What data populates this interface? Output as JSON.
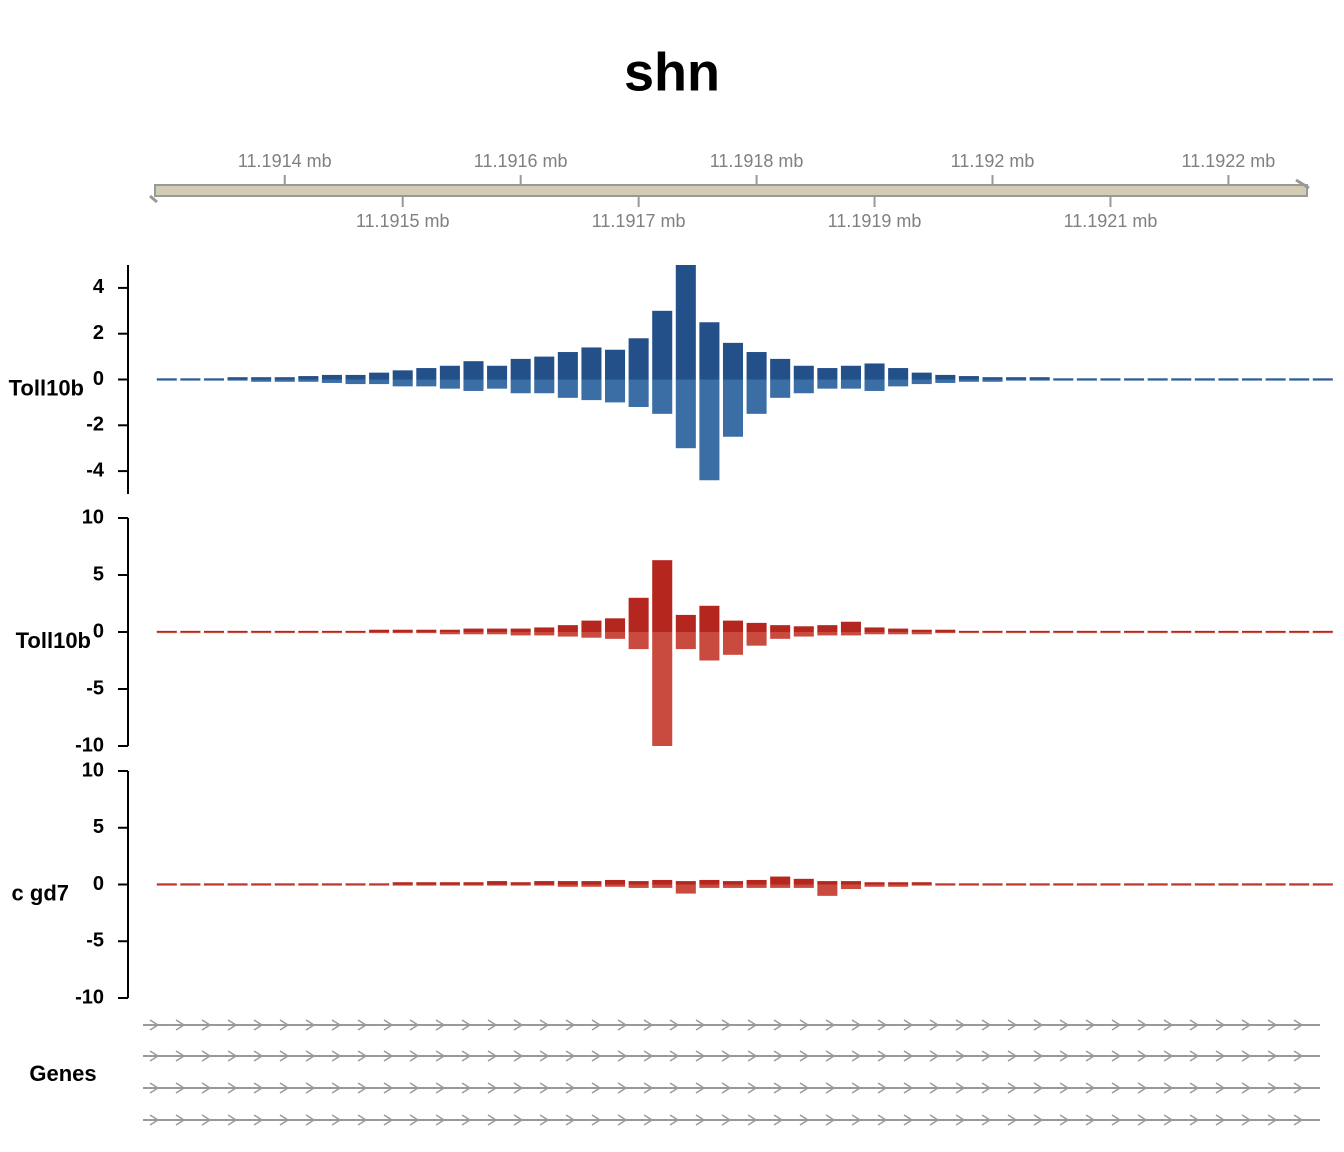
{
  "title": "shn",
  "xlim": [
    11.19129,
    11.19227
  ],
  "xticks": [
    {
      "value": 11.1914,
      "label": "11.1914 mb"
    },
    {
      "value": 11.1915,
      "label": "11.1915 mb"
    },
    {
      "value": 11.1916,
      "label": "11.1916 mb"
    },
    {
      "value": 11.1917,
      "label": "11.1917 mb"
    },
    {
      "value": 11.1918,
      "label": "11.1918 mb"
    },
    {
      "value": 11.1919,
      "label": "11.1919 mb"
    },
    {
      "value": 11.192,
      "label": "11.192 mb"
    },
    {
      "value": 11.1921,
      "label": "11.1921 mb"
    },
    {
      "value": 11.1922,
      "label": "11.1922 mb"
    }
  ],
  "genes_label": "Genes",
  "chart_data": [
    {
      "type": "bar",
      "ylabel": "Toll10b",
      "xlim": [
        11.19129,
        11.19227
      ],
      "ylim": [
        -5,
        5
      ],
      "yticks": [
        -4,
        -2,
        0,
        2,
        4
      ],
      "x": [
        11.1913,
        11.19132,
        11.19134,
        11.19136,
        11.19138,
        11.1914,
        11.19142,
        11.19144,
        11.19146,
        11.19148,
        11.1915,
        11.19152,
        11.19154,
        11.19156,
        11.19158,
        11.1916,
        11.19162,
        11.19164,
        11.19166,
        11.19168,
        11.1917,
        11.19172,
        11.19174,
        11.19176,
        11.19178,
        11.1918,
        11.19182,
        11.19184,
        11.19186,
        11.19188,
        11.1919,
        11.19192,
        11.19194,
        11.19196,
        11.19198,
        11.192,
        11.19202,
        11.19204,
        11.19206,
        11.19208,
        11.1921,
        11.19212,
        11.19214,
        11.19216,
        11.19218,
        11.1922,
        11.19222,
        11.19224,
        11.19226,
        11.19228
      ],
      "series": [
        {
          "color": "#24508a",
          "values": [
            0.05,
            0.05,
            0.05,
            0.1,
            0.1,
            0.1,
            0.15,
            0.2,
            0.2,
            0.3,
            0.4,
            0.5,
            0.6,
            0.8,
            0.6,
            0.9,
            1.0,
            1.2,
            1.4,
            1.3,
            1.8,
            3.0,
            5.0,
            2.5,
            1.6,
            1.2,
            0.9,
            0.6,
            0.5,
            0.6,
            0.7,
            0.5,
            0.3,
            0.2,
            0.15,
            0.1,
            0.1,
            0.1,
            0.05,
            0.05,
            0.05,
            0.05,
            0.05,
            0.05,
            0.05,
            0.05,
            0.05,
            0.05,
            0.05,
            0.05
          ]
        },
        {
          "color": "#3a6ea5",
          "values": [
            -0.05,
            -0.05,
            -0.05,
            -0.05,
            -0.1,
            -0.1,
            -0.1,
            -0.15,
            -0.2,
            -0.2,
            -0.3,
            -0.3,
            -0.4,
            -0.5,
            -0.4,
            -0.6,
            -0.6,
            -0.8,
            -0.9,
            -1.0,
            -1.2,
            -1.5,
            -3.0,
            -4.4,
            -2.5,
            -1.5,
            -0.8,
            -0.6,
            -0.4,
            -0.4,
            -0.5,
            -0.3,
            -0.2,
            -0.15,
            -0.1,
            -0.1,
            -0.05,
            -0.05,
            -0.05,
            -0.05,
            -0.05,
            -0.05,
            -0.05,
            -0.05,
            -0.05,
            -0.05,
            -0.05,
            -0.05,
            -0.05,
            -0.05
          ]
        }
      ]
    },
    {
      "type": "bar",
      "ylabel": "Toll10b",
      "xlim": [
        11.19129,
        11.19227
      ],
      "ylim": [
        -10,
        10
      ],
      "yticks": [
        -10,
        -5,
        0,
        5,
        10
      ],
      "x": [
        11.1913,
        11.19132,
        11.19134,
        11.19136,
        11.19138,
        11.1914,
        11.19142,
        11.19144,
        11.19146,
        11.19148,
        11.1915,
        11.19152,
        11.19154,
        11.19156,
        11.19158,
        11.1916,
        11.19162,
        11.19164,
        11.19166,
        11.19168,
        11.1917,
        11.19172,
        11.19174,
        11.19176,
        11.19178,
        11.1918,
        11.19182,
        11.19184,
        11.19186,
        11.19188,
        11.1919,
        11.19192,
        11.19194,
        11.19196,
        11.19198,
        11.192,
        11.19202,
        11.19204,
        11.19206,
        11.19208,
        11.1921,
        11.19212,
        11.19214,
        11.19216,
        11.19218,
        11.1922,
        11.19222,
        11.19224,
        11.19226,
        11.19228
      ],
      "series": [
        {
          "color": "#b5261e",
          "values": [
            0.1,
            0.1,
            0.1,
            0.1,
            0.1,
            0.1,
            0.1,
            0.1,
            0.1,
            0.2,
            0.2,
            0.2,
            0.2,
            0.3,
            0.3,
            0.3,
            0.4,
            0.6,
            1.0,
            1.2,
            3.0,
            6.3,
            1.5,
            2.3,
            1.0,
            0.8,
            0.6,
            0.5,
            0.6,
            0.9,
            0.4,
            0.3,
            0.2,
            0.2,
            0.1,
            0.1,
            0.1,
            0.1,
            0.1,
            0.1,
            0.1,
            0.1,
            0.1,
            0.1,
            0.1,
            0.1,
            0.1,
            0.1,
            0.1,
            0.1
          ]
        },
        {
          "color": "#c94a3f",
          "values": [
            -0.1,
            -0.1,
            -0.1,
            -0.1,
            -0.1,
            -0.1,
            -0.1,
            -0.1,
            -0.1,
            -0.1,
            -0.1,
            -0.1,
            -0.2,
            -0.2,
            -0.2,
            -0.3,
            -0.3,
            -0.4,
            -0.5,
            -0.6,
            -1.5,
            -10,
            -1.5,
            -2.5,
            -2.0,
            -1.2,
            -0.6,
            -0.4,
            -0.3,
            -0.3,
            -0.2,
            -0.2,
            -0.2,
            -0.1,
            -0.1,
            -0.1,
            -0.1,
            -0.1,
            -0.1,
            -0.1,
            -0.1,
            -0.1,
            -0.1,
            -0.1,
            -0.1,
            -0.1,
            -0.1,
            -0.1,
            -0.1,
            -0.1
          ]
        }
      ]
    },
    {
      "type": "bar",
      "ylabel": "c gd7",
      "xlim": [
        11.19129,
        11.19227
      ],
      "ylim": [
        -10,
        10
      ],
      "yticks": [
        -10,
        -5,
        0,
        5,
        10
      ],
      "x": [
        11.1913,
        11.19132,
        11.19134,
        11.19136,
        11.19138,
        11.1914,
        11.19142,
        11.19144,
        11.19146,
        11.19148,
        11.1915,
        11.19152,
        11.19154,
        11.19156,
        11.19158,
        11.1916,
        11.19162,
        11.19164,
        11.19166,
        11.19168,
        11.1917,
        11.19172,
        11.19174,
        11.19176,
        11.19178,
        11.1918,
        11.19182,
        11.19184,
        11.19186,
        11.19188,
        11.1919,
        11.19192,
        11.19194,
        11.19196,
        11.19198,
        11.192,
        11.19202,
        11.19204,
        11.19206,
        11.19208,
        11.1921,
        11.19212,
        11.19214,
        11.19216,
        11.19218,
        11.1922,
        11.19222,
        11.19224,
        11.19226,
        11.19228
      ],
      "series": [
        {
          "color": "#b5261e",
          "values": [
            0.1,
            0.1,
            0.1,
            0.1,
            0.1,
            0.1,
            0.1,
            0.1,
            0.1,
            0.1,
            0.2,
            0.2,
            0.2,
            0.2,
            0.3,
            0.2,
            0.3,
            0.3,
            0.3,
            0.4,
            0.3,
            0.4,
            0.3,
            0.4,
            0.3,
            0.4,
            0.7,
            0.5,
            0.3,
            0.3,
            0.2,
            0.2,
            0.2,
            0.1,
            0.1,
            0.1,
            0.1,
            0.1,
            0.1,
            0.1,
            0.1,
            0.1,
            0.1,
            0.1,
            0.1,
            0.1,
            0.1,
            0.1,
            0.1,
            0.1
          ]
        },
        {
          "color": "#c94a3f",
          "values": [
            -0.1,
            -0.1,
            -0.1,
            -0.1,
            -0.1,
            -0.1,
            -0.1,
            -0.1,
            -0.1,
            -0.1,
            -0.1,
            -0.1,
            -0.1,
            -0.1,
            -0.1,
            -0.1,
            -0.1,
            -0.2,
            -0.2,
            -0.2,
            -0.3,
            -0.3,
            -0.8,
            -0.3,
            -0.3,
            -0.3,
            -0.3,
            -0.3,
            -1.0,
            -0.4,
            -0.2,
            -0.2,
            -0.1,
            -0.1,
            -0.1,
            -0.1,
            -0.1,
            -0.1,
            -0.1,
            -0.1,
            -0.1,
            -0.1,
            -0.1,
            -0.1,
            -0.1,
            -0.1,
            -0.1,
            -0.1,
            -0.1,
            -0.1
          ]
        }
      ]
    }
  ]
}
